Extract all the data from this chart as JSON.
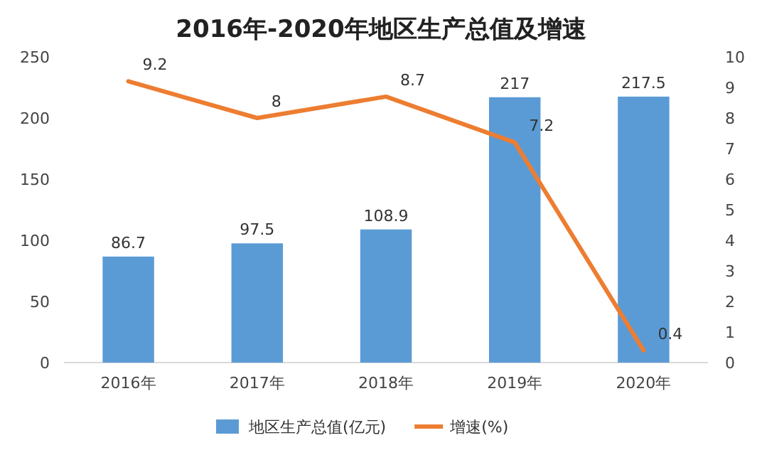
{
  "chart_data": {
    "type": "bar",
    "title": "2016年-2020年地区生产总值及增速",
    "categories": [
      "2016年",
      "2017年",
      "2018年",
      "2019年",
      "2020年"
    ],
    "series": [
      {
        "name": "地区生产总值(亿元)",
        "color": "#5b9bd5",
        "values": [
          86.7,
          97.5,
          108.9,
          217,
          217.5
        ]
      },
      {
        "name": "增速(%)",
        "type": "line",
        "axis": "y2",
        "color": "#ed7d31",
        "values": [
          9.2,
          8,
          8.7,
          7.2,
          0.4
        ]
      }
    ],
    "ylim": [
      0,
      250
    ],
    "yticks": [
      0,
      50,
      100,
      150,
      200,
      250
    ],
    "y2lim": [
      0,
      10
    ],
    "y2ticks": [
      0,
      1,
      2,
      3,
      4,
      5,
      6,
      7,
      8,
      9,
      10
    ],
    "data_labels": true,
    "legend": "bottom"
  }
}
